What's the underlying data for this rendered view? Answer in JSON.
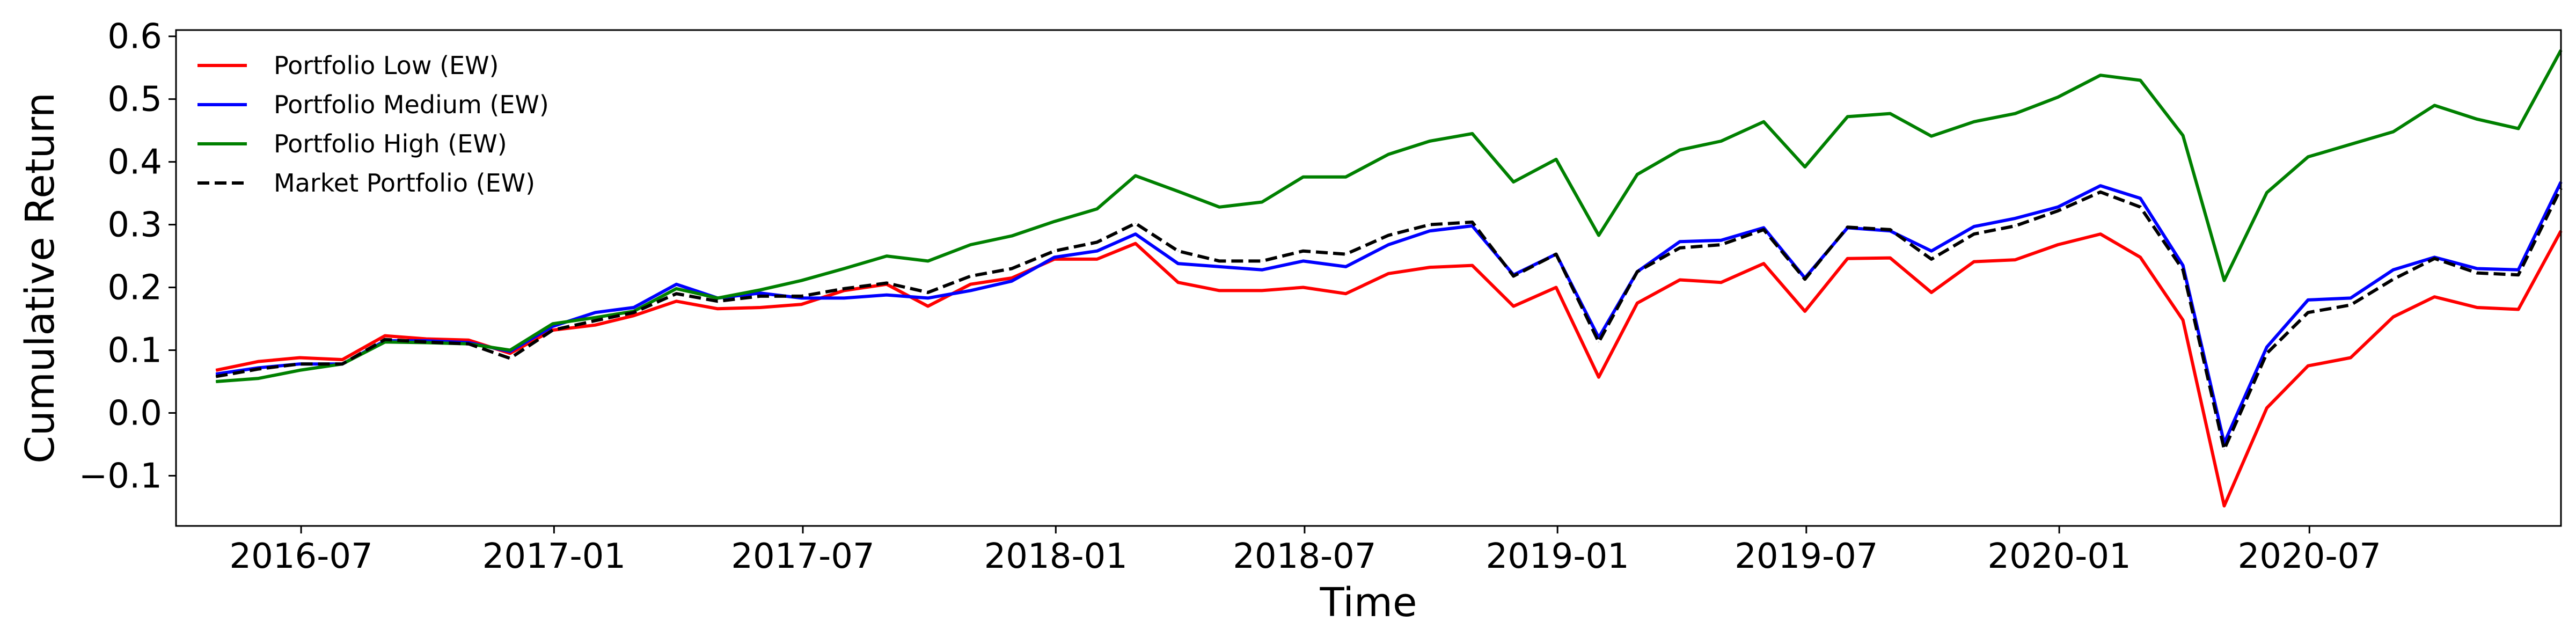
{
  "chart_data": {
    "type": "line",
    "title": "",
    "xlabel": "Time",
    "ylabel": "Cumulative Return",
    "xlim": [
      "2016-04-01",
      "2020-12-31"
    ],
    "ylim": [
      -0.18,
      0.61
    ],
    "grid": false,
    "legend_position": "top-left",
    "x_ticks": [
      "2016-07",
      "2017-01",
      "2017-07",
      "2018-01",
      "2018-07",
      "2019-01",
      "2019-07",
      "2020-01",
      "2020-07"
    ],
    "y_ticks": [
      "−0.1",
      "0.0",
      "0.1",
      "0.2",
      "0.3",
      "0.4",
      "0.5",
      "0.6"
    ],
    "x": [
      "2016-04-30",
      "2016-05-31",
      "2016-06-30",
      "2016-07-31",
      "2016-08-31",
      "2016-09-30",
      "2016-10-31",
      "2016-11-30",
      "2016-12-31",
      "2017-01-31",
      "2017-02-28",
      "2017-03-31",
      "2017-04-30",
      "2017-05-31",
      "2017-06-30",
      "2017-07-31",
      "2017-08-31",
      "2017-09-30",
      "2017-10-31",
      "2017-11-30",
      "2017-12-31",
      "2018-01-31",
      "2018-02-28",
      "2018-03-31",
      "2018-04-30",
      "2018-05-31",
      "2018-06-30",
      "2018-07-31",
      "2018-08-31",
      "2018-09-30",
      "2018-10-31",
      "2018-11-30",
      "2018-12-31",
      "2019-01-31",
      "2019-02-28",
      "2019-03-31",
      "2019-04-30",
      "2019-05-31",
      "2019-06-30",
      "2019-07-31",
      "2019-08-31",
      "2019-09-30",
      "2019-10-31",
      "2019-11-30",
      "2019-12-31",
      "2020-01-31",
      "2020-02-29",
      "2020-03-31",
      "2020-04-30",
      "2020-05-31",
      "2020-06-30",
      "2020-07-31",
      "2020-08-31",
      "2020-09-30",
      "2020-10-31",
      "2020-11-30",
      "2020-12-31"
    ],
    "series": [
      {
        "name": "Portfolio Low (EW)",
        "color": "#ff0000",
        "dash": "solid",
        "values": [
          0.068,
          0.082,
          0.088,
          0.085,
          0.123,
          0.118,
          0.116,
          0.095,
          0.132,
          0.14,
          0.155,
          0.178,
          0.166,
          0.168,
          0.173,
          0.195,
          0.205,
          0.17,
          0.205,
          0.215,
          0.245,
          0.245,
          0.27,
          0.208,
          0.195,
          0.195,
          0.2,
          0.19,
          0.222,
          0.232,
          0.235,
          0.17,
          0.2,
          0.057,
          0.175,
          0.212,
          0.208,
          0.238,
          0.162,
          0.246,
          0.247,
          0.192,
          0.241,
          0.244,
          0.268,
          0.285,
          0.248,
          0.148,
          -0.148,
          0.008,
          0.075,
          0.088,
          0.153,
          0.185,
          0.168,
          0.165,
          0.29
        ]
      },
      {
        "name": "Portfolio Medium (EW)",
        "color": "#0000ff",
        "dash": "solid",
        "values": [
          0.062,
          0.072,
          0.078,
          0.078,
          0.115,
          0.115,
          0.112,
          0.098,
          0.138,
          0.16,
          0.168,
          0.205,
          0.183,
          0.191,
          0.183,
          0.183,
          0.188,
          0.183,
          0.195,
          0.21,
          0.248,
          0.258,
          0.285,
          0.238,
          0.233,
          0.228,
          0.242,
          0.233,
          0.268,
          0.29,
          0.298,
          0.22,
          0.253,
          0.12,
          0.225,
          0.273,
          0.275,
          0.295,
          0.215,
          0.295,
          0.29,
          0.258,
          0.297,
          0.31,
          0.328,
          0.362,
          0.342,
          0.235,
          -0.048,
          0.105,
          0.18,
          0.183,
          0.228,
          0.248,
          0.23,
          0.228,
          0.368
        ]
      },
      {
        "name": "Portfolio High (EW)",
        "color": "#008000",
        "dash": "solid",
        "values": [
          0.05,
          0.055,
          0.068,
          0.078,
          0.113,
          0.112,
          0.11,
          0.1,
          0.142,
          0.152,
          0.162,
          0.198,
          0.183,
          0.196,
          0.211,
          0.23,
          0.25,
          0.242,
          0.268,
          0.282,
          0.305,
          0.325,
          0.378,
          0.353,
          0.328,
          0.336,
          0.376,
          0.376,
          0.412,
          0.433,
          0.445,
          0.368,
          0.404,
          0.283,
          0.38,
          0.419,
          0.433,
          0.464,
          0.392,
          0.472,
          0.477,
          0.441,
          0.464,
          0.477,
          0.503,
          0.538,
          0.53,
          0.442,
          0.211,
          0.351,
          0.408,
          0.428,
          0.448,
          0.49,
          0.468,
          0.453,
          0.578
        ]
      },
      {
        "name": "Market Portfolio (EW)",
        "color": "#000000",
        "dash": "dashed",
        "values": [
          0.058,
          0.07,
          0.078,
          0.078,
          0.117,
          0.113,
          0.11,
          0.087,
          0.132,
          0.147,
          0.16,
          0.19,
          0.178,
          0.186,
          0.186,
          0.198,
          0.207,
          0.192,
          0.218,
          0.23,
          0.258,
          0.272,
          0.302,
          0.258,
          0.242,
          0.242,
          0.258,
          0.253,
          0.283,
          0.3,
          0.304,
          0.218,
          0.253,
          0.113,
          0.225,
          0.263,
          0.268,
          0.292,
          0.213,
          0.296,
          0.292,
          0.245,
          0.285,
          0.298,
          0.322,
          0.352,
          0.328,
          0.228,
          -0.058,
          0.095,
          0.16,
          0.172,
          0.213,
          0.246,
          0.223,
          0.22,
          0.358
        ]
      }
    ]
  }
}
